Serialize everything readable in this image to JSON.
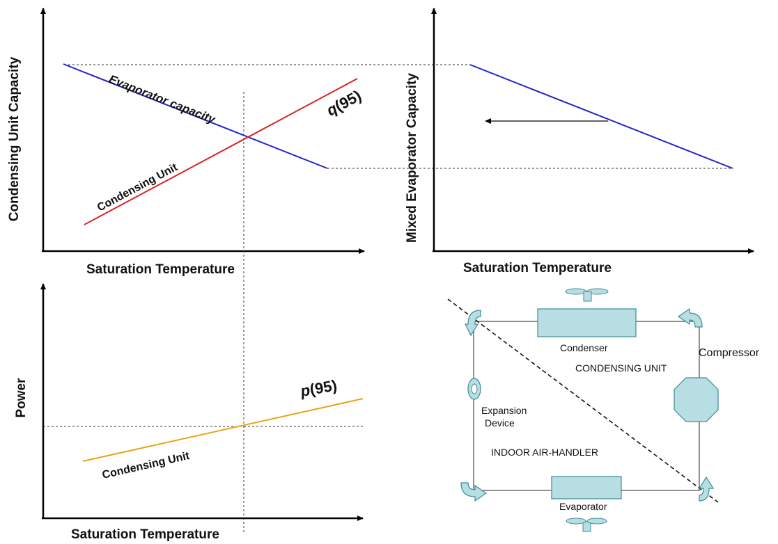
{
  "top_left_chart": {
    "ylabel": "Condensing Unit Capacity",
    "xlabel": "Saturation Temperature",
    "evaporator_label": "Evaporator capacity",
    "condensing_label": "Condensing Unit",
    "q_symbol": "q",
    "q_arg": "(95)",
    "evaporator_color": "#2222cc",
    "condensing_color": "#dd2222"
  },
  "top_right_chart": {
    "ylabel": "Mixed Evaporator  Capacity",
    "xlabel": "Saturation Temperature",
    "line_color": "#2222cc"
  },
  "bottom_left_chart": {
    "ylabel": "Power",
    "xlabel": "Saturation Temperature",
    "line_label": "Condensing Unit",
    "p_symbol": "p",
    "p_arg": "(95)",
    "line_color": "#e8a317"
  },
  "schematic": {
    "condenser": "Condenser",
    "compressor": "Compressor",
    "condensing_unit": "CONDENSING UNIT",
    "expansion_line1": "Expansion",
    "expansion_line2": "Device",
    "indoor_air_handler": "INDOOR AIR-HANDLER",
    "evaporator": "Evaporator",
    "component_fill": "#b7dfe3",
    "component_stroke": "#3c8a96"
  }
}
